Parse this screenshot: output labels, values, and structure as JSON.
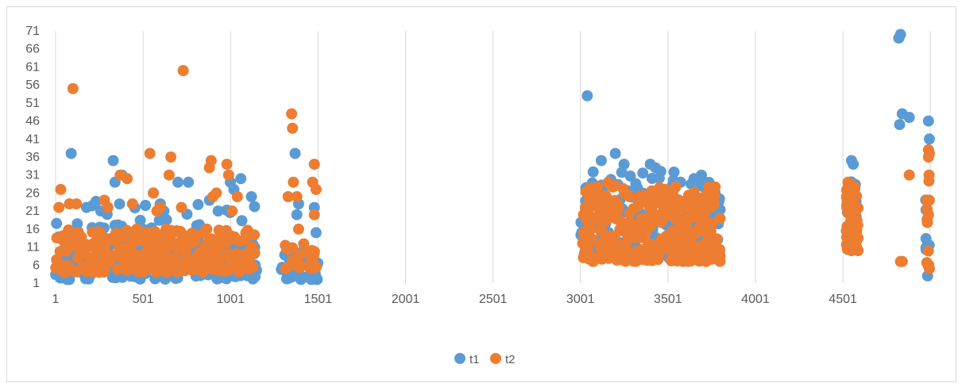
{
  "chart_data": {
    "type": "scatter",
    "title": "",
    "xlabel": "",
    "ylabel": "",
    "xlim": [
      1,
      5000
    ],
    "ylim": [
      1,
      71
    ],
    "x_ticks": [
      1,
      501,
      1001,
      1501,
      2001,
      2501,
      3001,
      3501,
      4001,
      4501
    ],
    "x_tick_labels": [
      "1",
      "501",
      "1001",
      "1501",
      "2001",
      "2501",
      "3001",
      "3501",
      "4001",
      "4501"
    ],
    "y_ticks": [
      1,
      6,
      11,
      16,
      21,
      26,
      31,
      36,
      41,
      46,
      51,
      56,
      61,
      66,
      71
    ],
    "y_tick_labels": [
      "1",
      "6",
      "11",
      "16",
      "21",
      "26",
      "31",
      "36",
      "41",
      "46",
      "51",
      "56",
      "61",
      "66",
      "71"
    ],
    "grid": "vertical",
    "legend_position": "bottom",
    "series": [
      {
        "name": "t1",
        "color": "#5B9BD5",
        "clusters": [
          {
            "x_range": [
              1,
              1150
            ],
            "y_range": [
              2,
              12
            ],
            "count": 260,
            "seed": 11
          },
          {
            "x_range": [
              1,
              1150
            ],
            "y_range": [
              12,
              24
            ],
            "count": 45,
            "seed": 12
          },
          {
            "x_range": [
              1290,
              1500
            ],
            "y_range": [
              2,
              10
            ],
            "count": 45,
            "seed": 13
          },
          {
            "x_range": [
              3000,
              3800
            ],
            "y_range": [
              8,
              32
            ],
            "count": 200,
            "seed": 14
          },
          {
            "x_range": [
              4520,
              4580
            ],
            "y_range": [
              10,
              30
            ],
            "count": 40,
            "seed": 15
          },
          {
            "x_range": [
              4970,
              4995
            ],
            "y_range": [
              10,
              28
            ],
            "count": 8,
            "seed": 16
          }
        ],
        "points": [
          [
            90,
            37
          ],
          [
            330,
            35
          ],
          [
            340,
            29
          ],
          [
            380,
            31
          ],
          [
            400,
            15
          ],
          [
            560,
            26
          ],
          [
            600,
            23
          ],
          [
            620,
            21
          ],
          [
            700,
            29
          ],
          [
            760,
            29
          ],
          [
            880,
            24
          ],
          [
            930,
            21
          ],
          [
            1000,
            29
          ],
          [
            1020,
            27
          ],
          [
            1060,
            30
          ],
          [
            1120,
            25
          ],
          [
            1370,
            37
          ],
          [
            1380,
            20
          ],
          [
            1390,
            23
          ],
          [
            1480,
            22
          ],
          [
            1490,
            15
          ],
          [
            3040,
            53
          ],
          [
            3070,
            24
          ],
          [
            3120,
            35
          ],
          [
            3200,
            37
          ],
          [
            3250,
            34
          ],
          [
            3400,
            34
          ],
          [
            3430,
            33
          ],
          [
            3460,
            32
          ],
          [
            3650,
            30
          ],
          [
            3700,
            28
          ],
          [
            3770,
            26
          ],
          [
            4550,
            35
          ],
          [
            4560,
            34
          ],
          [
            4820,
            69
          ],
          [
            4830,
            70
          ],
          [
            4840,
            48
          ],
          [
            4825,
            45
          ],
          [
            4880,
            47
          ],
          [
            4990,
            46
          ],
          [
            4995,
            41
          ],
          [
            4985,
            3
          ]
        ]
      },
      {
        "name": "t2",
        "color": "#ED7D31",
        "clusters": [
          {
            "x_range": [
              1,
              1150
            ],
            "y_range": [
              4,
              16
            ],
            "count": 300,
            "seed": 21
          },
          {
            "x_range": [
              1300,
              1500
            ],
            "y_range": [
              5,
              12
            ],
            "count": 25,
            "seed": 22
          },
          {
            "x_range": [
              3010,
              3800
            ],
            "y_range": [
              7,
              28
            ],
            "count": 330,
            "seed": 23
          },
          {
            "x_range": [
              4520,
              4590
            ],
            "y_range": [
              10,
              28
            ],
            "count": 60,
            "seed": 24
          },
          {
            "x_range": [
              4980,
              4995
            ],
            "y_range": [
              5,
              38
            ],
            "count": 8,
            "seed": 25
          }
        ],
        "points": [
          [
            100,
            55
          ],
          [
            730,
            60
          ],
          [
            30,
            27
          ],
          [
            20,
            22
          ],
          [
            80,
            23
          ],
          [
            120,
            23
          ],
          [
            280,
            24
          ],
          [
            300,
            22
          ],
          [
            370,
            31
          ],
          [
            410,
            30
          ],
          [
            440,
            23
          ],
          [
            540,
            37
          ],
          [
            560,
            26
          ],
          [
            580,
            21
          ],
          [
            600,
            22
          ],
          [
            650,
            31
          ],
          [
            660,
            36
          ],
          [
            720,
            22
          ],
          [
            880,
            33
          ],
          [
            890,
            35
          ],
          [
            900,
            25
          ],
          [
            920,
            26
          ],
          [
            980,
            34
          ],
          [
            990,
            31
          ],
          [
            1010,
            21
          ],
          [
            1040,
            25
          ],
          [
            1350,
            48
          ],
          [
            1355,
            44
          ],
          [
            1360,
            29
          ],
          [
            1330,
            25
          ],
          [
            1380,
            25
          ],
          [
            1390,
            16
          ],
          [
            1470,
            29
          ],
          [
            1480,
            34
          ],
          [
            1490,
            27
          ],
          [
            1480,
            20
          ],
          [
            3040,
            18
          ],
          [
            3160,
            29
          ],
          [
            3200,
            28
          ],
          [
            4530,
            29
          ],
          [
            4560,
            28
          ],
          [
            4830,
            7
          ],
          [
            4840,
            7
          ],
          [
            4880,
            31
          ],
          [
            4990,
            38
          ],
          [
            4995,
            37
          ],
          [
            4990,
            36
          ],
          [
            4993,
            31
          ],
          [
            4995,
            24
          ],
          [
            4990,
            20
          ],
          [
            4992,
            6
          ],
          [
            4995,
            5
          ]
        ]
      }
    ]
  }
}
